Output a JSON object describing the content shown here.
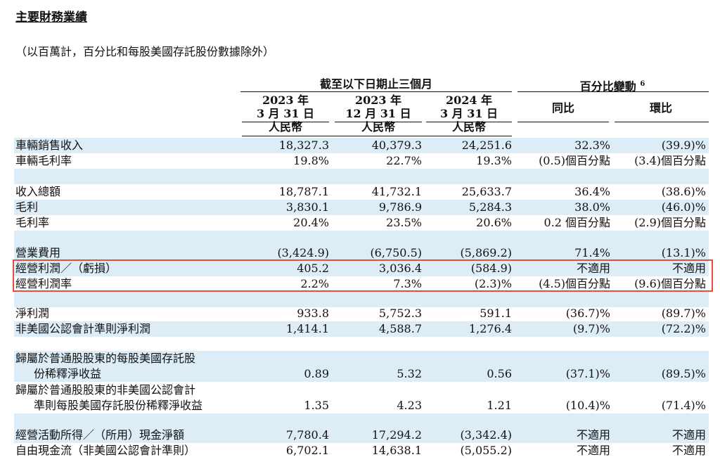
{
  "title": "主要財務業績",
  "subtitle": "（以百萬計，百分比和每股美國存託股份數據除外）",
  "header": {
    "group_left": "截至以下日期止三個月",
    "group_right": "百分比變動",
    "group_right_note": "6",
    "periods": [
      {
        "line1": "2023 年",
        "line2": "3 月 31 日",
        "currency": "人民幣"
      },
      {
        "line1": "2023 年",
        "line2": "12 月 31 日",
        "currency": "人民幣"
      },
      {
        "line1": "2024 年",
        "line2": "3 月 31 日",
        "currency": "人民幣"
      }
    ],
    "change_cols": [
      "同比",
      "環比"
    ]
  },
  "rows": [
    {
      "label": "車輛銷售收入",
      "v": [
        "18,327.3",
        "40,379.3",
        "24,251.6",
        "32.3%",
        "(39.9)%"
      ]
    },
    {
      "label": "車輛毛利率",
      "v": [
        "19.8%",
        "22.7%",
        "19.3%",
        "(0.5)個百分點",
        "(3.4)個百分點"
      ]
    },
    {
      "label": "收入總額",
      "v": [
        "18,787.1",
        "41,732.1",
        "25,633.7",
        "36.4%",
        "(38.6)%"
      ]
    },
    {
      "label": "毛利",
      "v": [
        "3,830.1",
        "9,786.9",
        "5,284.3",
        "38.0%",
        "(46.0)%"
      ]
    },
    {
      "label": "毛利率",
      "v": [
        "20.4%",
        "23.5%",
        "20.6%",
        "0.2 個百分點",
        "(2.9)個百分點"
      ]
    },
    {
      "label": "營業費用",
      "v": [
        "(3,424.9)",
        "(6,750.5)",
        "(5,869.2)",
        "71.4%",
        "(13.1)%"
      ]
    },
    {
      "label": "經營利潤／（虧損）",
      "v": [
        "405.2",
        "3,036.4",
        "(584.9)",
        "不適用",
        "不適用"
      ]
    },
    {
      "label": "經營利潤率",
      "v": [
        "2.2%",
        "7.3%",
        "(2.3)%",
        "(4.5)個百分點",
        "(9.6)個百分點"
      ]
    },
    {
      "label": "淨利潤",
      "v": [
        "933.8",
        "5,752.3",
        "591.1",
        "(36.7)%",
        "(89.7)%"
      ]
    },
    {
      "label": "非美國公認會計準則淨利潤",
      "v": [
        "1,414.1",
        "4,588.7",
        "1,276.4",
        "(9.7)%",
        "(72.2)%"
      ]
    },
    {
      "label": "歸屬於普通股股東的每股美國存託股",
      "label2": "份稀釋淨收益",
      "v": [
        "0.89",
        "5.32",
        "0.56",
        "(37.1)%",
        "(89.5)%"
      ]
    },
    {
      "label": "歸屬於普通股股東的非美國公認會計",
      "label2": "準則每股美國存託股份稀釋淨收益",
      "v": [
        "1.35",
        "4.23",
        "1.21",
        "(10.4)%",
        "(71.4)%"
      ]
    },
    {
      "label": "經營活動所得／（所用）現金淨額",
      "v": [
        "7,780.4",
        "17,294.2",
        "(3,342.4)",
        "不適用",
        "不適用"
      ]
    },
    {
      "label": "自由現金流（非美國公認會計準則）",
      "v": [
        "6,702.1",
        "14,638.1",
        "(5,055.2)",
        "不適用",
        "不適用"
      ]
    }
  ]
}
